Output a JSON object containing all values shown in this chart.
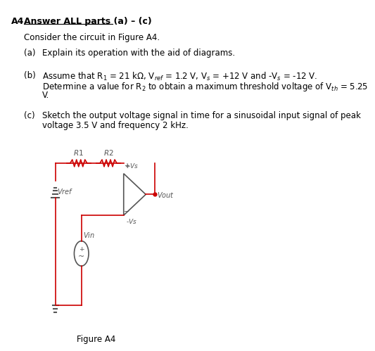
{
  "title_label": "A4",
  "header": "Answer ALL parts (a) – (c)",
  "intro": "Consider the circuit in Figure A4.",
  "part_a_label": "(a)",
  "part_a_text": "Explain its operation with the aid of diagrams.",
  "part_b_label": "(b)",
  "part_b_line1": "Assume that R$_1$ = 21 k$\\Omega$, V$_{ref}$ = 1.2 V, V$_s$ = +12 V and -V$_s$ = -12 V.",
  "part_b_line2": "Determine a value for R$_2$ to obtain a maximum threshold voltage of V$_{th}$ = 5.25",
  "part_b_line3": "V.",
  "part_c_label": "(c)",
  "part_c_line1": "Sketch the output voltage signal in time for a sinusoidal input signal of peak",
  "part_c_line2": "voltage 3.5 V and frequency 2 kHz.",
  "figure_label": "Figure A4",
  "bg_color": "#ffffff",
  "text_color": "#000000",
  "circuit_color": "#cc0000",
  "circuit_gray": "#555555"
}
